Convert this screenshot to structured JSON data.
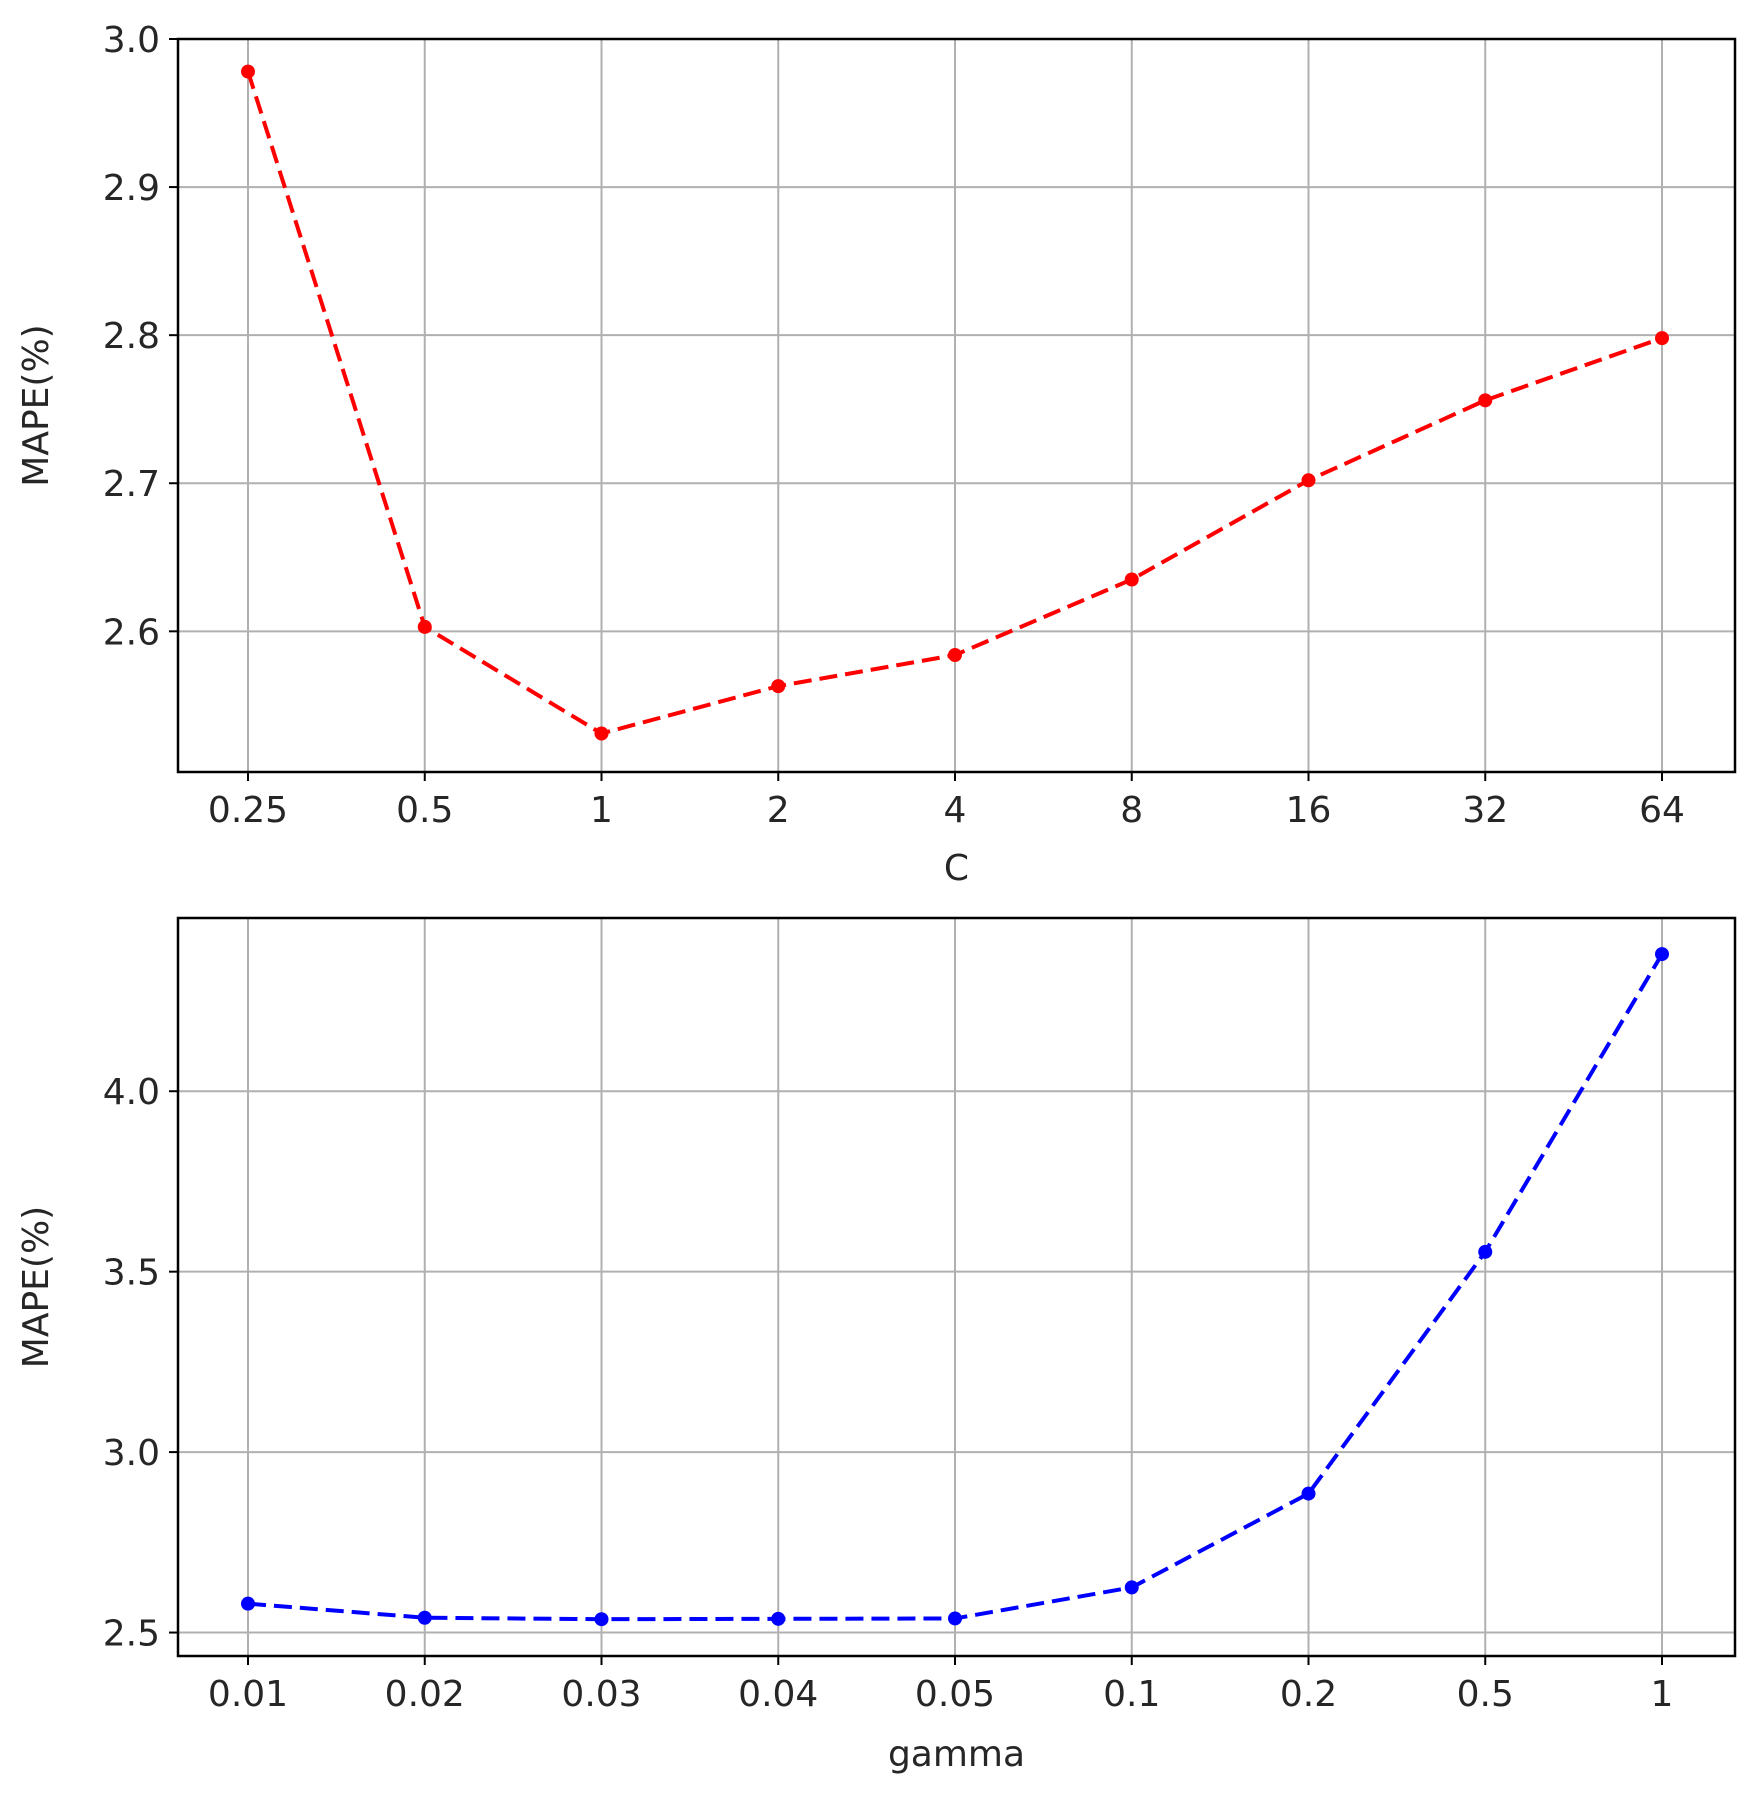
{
  "chart_data": [
    {
      "type": "line",
      "categories": [
        "0.25",
        "0.5",
        "1",
        "2",
        "4",
        "8",
        "16",
        "32",
        "64"
      ],
      "series": [
        {
          "values": [
            2.978,
            2.603,
            2.531,
            2.563,
            2.584,
            2.635,
            2.702,
            2.756,
            2.798
          ],
          "color": "#ff0000",
          "linestyle": "dashed",
          "marker": "dot"
        }
      ],
      "xlabel": "C",
      "ylabel": "MAPE(%)",
      "ylim": [
        2.505,
        3.0
      ],
      "yticks": [
        2.6,
        2.7,
        2.8,
        2.9,
        3.0
      ],
      "ytick_labels": [
        "2.6",
        "2.7",
        "2.8",
        "2.9",
        "3.0"
      ],
      "grid": true
    },
    {
      "type": "line",
      "categories": [
        "0.01",
        "0.02",
        "0.03",
        "0.04",
        "0.05",
        "0.1",
        "0.2",
        "0.5",
        "1"
      ],
      "series": [
        {
          "values": [
            2.58,
            2.541,
            2.537,
            2.538,
            2.539,
            2.625,
            2.885,
            3.555,
            4.38
          ],
          "color": "#0000ff",
          "linestyle": "dashed",
          "marker": "dot"
        }
      ],
      "xlabel": "gamma",
      "ylabel": "MAPE(%)",
      "ylim": [
        2.435,
        4.48
      ],
      "yticks": [
        2.5,
        3.0,
        3.5,
        4.0
      ],
      "ytick_labels": [
        "2.5",
        "3.0",
        "3.5",
        "4.0"
      ],
      "grid": true
    }
  ]
}
